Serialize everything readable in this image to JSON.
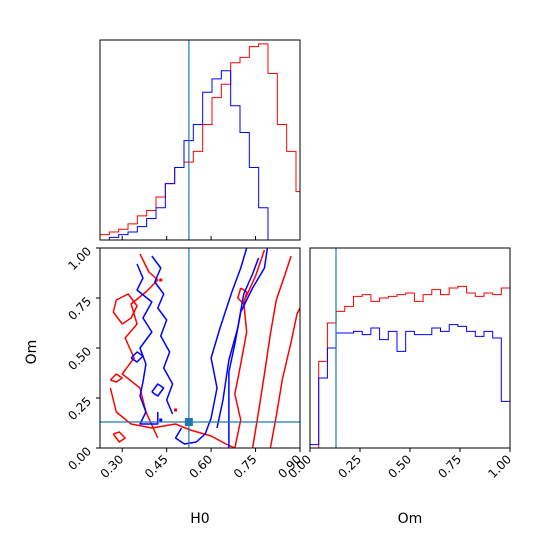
{
  "chart_data": {
    "type": "corner",
    "colors": {
      "red": "#ff0000",
      "blue": "#0000ff",
      "truth": "#1f77b4"
    },
    "truth": {
      "H0": 0.525,
      "Om": 0.13
    },
    "parameters": [
      {
        "name": "H0",
        "range": [
          0.225,
          0.9
        ]
      },
      {
        "name": "Om",
        "range": [
          0.0,
          1.0
        ]
      }
    ],
    "axes": {
      "H0_ticks": [
        0.3,
        0.45,
        0.6,
        0.75,
        0.9
      ],
      "H0_tick_labels": [
        "0.30",
        "0.45",
        "0.60",
        "0.75",
        "0.90"
      ],
      "Om_ticks": [
        0.0,
        0.25,
        0.5,
        0.75,
        1.0
      ],
      "Om_tick_labels": [
        "0.00",
        "0.25",
        "0.50",
        "0.75",
        "1.00"
      ],
      "xlabel_left": "H0",
      "xlabel_right": "Om",
      "ylabel_left": "Om"
    },
    "hist_H0": {
      "bin_edges": [
        0.225,
        0.2565,
        0.288,
        0.3195,
        0.351,
        0.3825,
        0.414,
        0.4455,
        0.477,
        0.5085,
        0.54,
        0.5715,
        0.603,
        0.6345,
        0.666,
        0.6975,
        0.729,
        0.7605,
        0.792,
        0.8235,
        0.855,
        0.8865,
        0.918
      ],
      "series": [
        {
          "color": "red",
          "values": [
            2,
            3,
            4,
            6,
            9,
            11,
            16,
            21,
            27,
            29,
            33,
            43,
            53,
            58,
            66,
            68,
            72,
            73,
            62,
            43,
            33,
            18,
            10
          ]
        },
        {
          "color": "blue",
          "values": [
            0,
            1,
            2,
            3,
            5,
            8,
            12,
            21,
            27,
            37,
            43,
            55,
            60,
            63,
            50,
            40,
            27,
            12,
            0,
            0,
            0,
            0,
            0
          ]
        }
      ]
    },
    "hist_Om": {
      "bin_edges": [
        0.0,
        0.0435,
        0.087,
        0.1305,
        0.174,
        0.2175,
        0.261,
        0.3045,
        0.348,
        0.3915,
        0.435,
        0.4785,
        0.522,
        0.5655,
        0.609,
        0.6525,
        0.696,
        0.7395,
        0.783,
        0.8265,
        0.87,
        0.9135,
        0.9565,
        1.0
      ],
      "series": [
        {
          "color": "red",
          "values": [
            0,
            52,
            75,
            82,
            85,
            91,
            92,
            88,
            90,
            91,
            92,
            93,
            88,
            92,
            95,
            92,
            96,
            97,
            93,
            91,
            93,
            92,
            96
          ]
        },
        {
          "color": "blue",
          "values": [
            2,
            42,
            60,
            69,
            69,
            70,
            68,
            72,
            65,
            70,
            58,
            70,
            68,
            68,
            72,
            70,
            74,
            73,
            70,
            67,
            70,
            66,
            28
          ]
        }
      ]
    },
    "contours": [
      {
        "color": "red",
        "points": [
          [
            0.3,
            0.62
          ],
          [
            0.27,
            0.68
          ],
          [
            0.28,
            0.74
          ],
          [
            0.32,
            0.77
          ],
          [
            0.35,
            0.71
          ],
          [
            0.33,
            0.65
          ],
          [
            0.3,
            0.62
          ]
        ]
      },
      {
        "color": "red",
        "points": [
          [
            0.26,
            0.3
          ],
          [
            0.28,
            0.18
          ],
          [
            0.33,
            0.12
          ],
          [
            0.4,
            0.1
          ],
          [
            0.48,
            0.12
          ],
          [
            0.53,
            0.09
          ],
          [
            0.6,
            0.06
          ],
          [
            0.65,
            0.02
          ],
          [
            0.68,
            0.0
          ]
        ]
      },
      {
        "color": "red",
        "points": [
          [
            0.36,
            0.97
          ],
          [
            0.39,
            0.88
          ],
          [
            0.42,
            0.84
          ],
          [
            0.38,
            0.78
          ],
          [
            0.33,
            0.72
          ],
          [
            0.35,
            0.62
          ],
          [
            0.31,
            0.55
          ],
          [
            0.34,
            0.45
          ],
          [
            0.3,
            0.37
          ],
          [
            0.36,
            0.3
          ],
          [
            0.38,
            0.18
          ],
          [
            0.42,
            0.05
          ]
        ]
      },
      {
        "color": "red",
        "points": [
          [
            0.68,
            0.0
          ],
          [
            0.7,
            0.14
          ],
          [
            0.68,
            0.27
          ],
          [
            0.7,
            0.42
          ],
          [
            0.72,
            0.58
          ],
          [
            0.71,
            0.73
          ],
          [
            0.75,
            0.86
          ],
          [
            0.78,
            0.99
          ]
        ]
      },
      {
        "color": "red",
        "points": [
          [
            0.74,
            0.0
          ],
          [
            0.76,
            0.18
          ],
          [
            0.78,
            0.37
          ],
          [
            0.8,
            0.57
          ],
          [
            0.82,
            0.74
          ],
          [
            0.85,
            0.87
          ],
          [
            0.87,
            0.96
          ]
        ]
      },
      {
        "color": "red",
        "points": [
          [
            0.8,
            0.0
          ],
          [
            0.82,
            0.16
          ],
          [
            0.84,
            0.34
          ],
          [
            0.87,
            0.53
          ],
          [
            0.89,
            0.67
          ],
          [
            0.9,
            0.7
          ]
        ]
      },
      {
        "color": "red",
        "points": [
          [
            0.7,
            0.8
          ],
          [
            0.69,
            0.75
          ],
          [
            0.71,
            0.72
          ],
          [
            0.72,
            0.78
          ],
          [
            0.7,
            0.8
          ]
        ]
      },
      {
        "color": "red",
        "points": [
          [
            0.27,
            0.07
          ],
          [
            0.29,
            0.03
          ],
          [
            0.31,
            0.05
          ],
          [
            0.29,
            0.08
          ],
          [
            0.27,
            0.07
          ]
        ]
      },
      {
        "color": "red",
        "points": [
          [
            0.26,
            0.34
          ],
          [
            0.28,
            0.37
          ],
          [
            0.3,
            0.35
          ],
          [
            0.28,
            0.33
          ],
          [
            0.26,
            0.34
          ]
        ]
      },
      {
        "color": "blue",
        "points": [
          [
            0.35,
            0.92
          ],
          [
            0.37,
            0.85
          ],
          [
            0.35,
            0.79
          ],
          [
            0.4,
            0.73
          ],
          [
            0.37,
            0.65
          ],
          [
            0.4,
            0.58
          ],
          [
            0.36,
            0.5
          ],
          [
            0.38,
            0.42
          ],
          [
            0.37,
            0.33
          ],
          [
            0.36,
            0.26
          ],
          [
            0.38,
            0.18
          ],
          [
            0.36,
            0.12
          ],
          [
            0.42,
            0.12
          ],
          [
            0.42,
            0.18
          ]
        ]
      },
      {
        "color": "blue",
        "points": [
          [
            0.4,
            0.96
          ],
          [
            0.43,
            0.9
          ],
          [
            0.41,
            0.83
          ],
          [
            0.44,
            0.77
          ],
          [
            0.42,
            0.7
          ],
          [
            0.45,
            0.64
          ],
          [
            0.43,
            0.56
          ],
          [
            0.46,
            0.48
          ],
          [
            0.44,
            0.4
          ],
          [
            0.47,
            0.32
          ],
          [
            0.45,
            0.24
          ],
          [
            0.47,
            0.17
          ]
        ]
      },
      {
        "color": "blue",
        "points": [
          [
            0.5,
            0.1
          ],
          [
            0.48,
            0.05
          ],
          [
            0.51,
            0.02
          ],
          [
            0.55,
            0.03
          ],
          [
            0.58,
            0.07
          ],
          [
            0.6,
            0.15
          ],
          [
            0.62,
            0.3
          ],
          [
            0.6,
            0.45
          ],
          [
            0.63,
            0.6
          ],
          [
            0.67,
            0.78
          ],
          [
            0.7,
            0.9
          ],
          [
            0.72,
            1.0
          ]
        ]
      },
      {
        "color": "blue",
        "points": [
          [
            0.66,
            0.0
          ],
          [
            0.66,
            0.2
          ],
          [
            0.66,
            0.38
          ],
          [
            0.68,
            0.52
          ],
          [
            0.7,
            0.68
          ],
          [
            0.74,
            0.8
          ],
          [
            0.78,
            0.9
          ],
          [
            0.79,
            1.0
          ]
        ]
      },
      {
        "color": "blue",
        "points": [
          [
            0.62,
            0.1
          ],
          [
            0.64,
            0.24
          ],
          [
            0.66,
            0.44
          ],
          [
            0.69,
            0.6
          ],
          [
            0.71,
            0.77
          ],
          [
            0.74,
            0.87
          ],
          [
            0.76,
            0.95
          ]
        ]
      },
      {
        "color": "blue",
        "points": [
          [
            0.4,
            0.28
          ],
          [
            0.42,
            0.32
          ],
          [
            0.44,
            0.3
          ],
          [
            0.42,
            0.26
          ],
          [
            0.4,
            0.28
          ]
        ]
      },
      {
        "color": "blue",
        "points": [
          [
            0.33,
            0.45
          ],
          [
            0.35,
            0.48
          ],
          [
            0.37,
            0.46
          ],
          [
            0.35,
            0.43
          ],
          [
            0.33,
            0.45
          ]
        ]
      }
    ],
    "truth_marker": {
      "H0": 0.525,
      "Om": 0.13
    },
    "small_markers": [
      {
        "color": "red",
        "H0": 0.43,
        "Om": 0.84
      },
      {
        "color": "red",
        "H0": 0.48,
        "Om": 0.19
      },
      {
        "color": "blue",
        "H0": 0.43,
        "Om": 0.14
      }
    ]
  }
}
